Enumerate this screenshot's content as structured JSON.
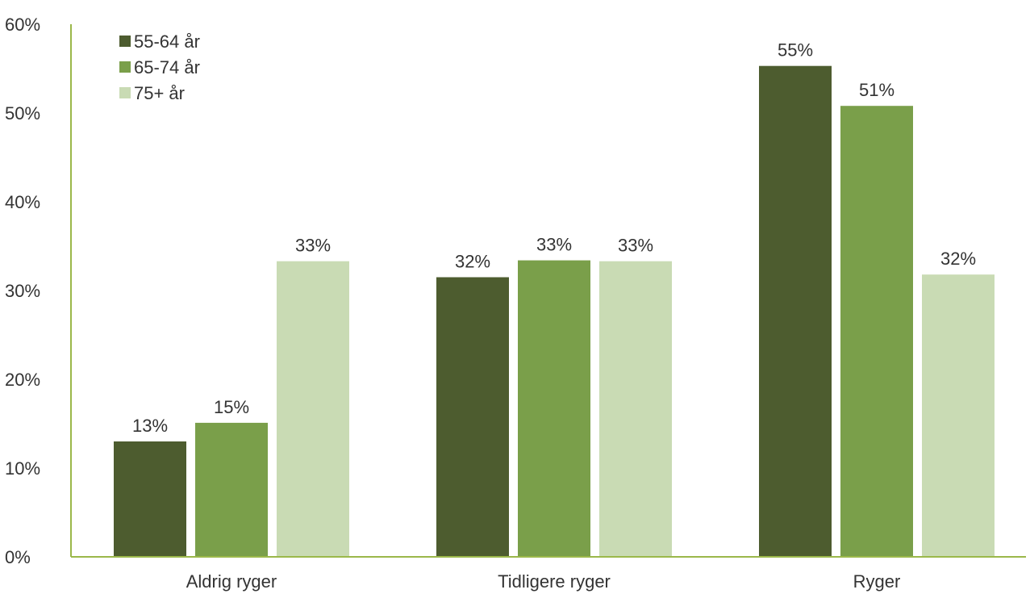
{
  "chart_data": {
    "type": "bar",
    "categories": [
      "Aldrig ryger",
      "Tidligere ryger",
      "Ryger"
    ],
    "series": [
      {
        "name": "55-64 år",
        "values": [
          13,
          31.5,
          55.3
        ],
        "labels": [
          "13%",
          "32%",
          "55%"
        ],
        "color": "#4d5c2f"
      },
      {
        "name": "65-74 år",
        "values": [
          15.1,
          33.4,
          50.8
        ],
        "labels": [
          "15%",
          "33%",
          "51%"
        ],
        "color": "#7a9f4a"
      },
      {
        "name": "75+ år",
        "values": [
          33.3,
          33.3,
          31.8
        ],
        "labels": [
          "33%",
          "33%",
          "32%"
        ],
        "color": "#c9dbb4"
      }
    ],
    "y_ticks": [
      "0%",
      "10%",
      "20%",
      "30%",
      "40%",
      "50%",
      "60%"
    ],
    "ylim": [
      0,
      60
    ],
    "y_unit": "%",
    "grid": false,
    "legend_position": "top-left",
    "axis_color": "#9bb84a",
    "title": "",
    "xlabel": "",
    "ylabel": ""
  }
}
